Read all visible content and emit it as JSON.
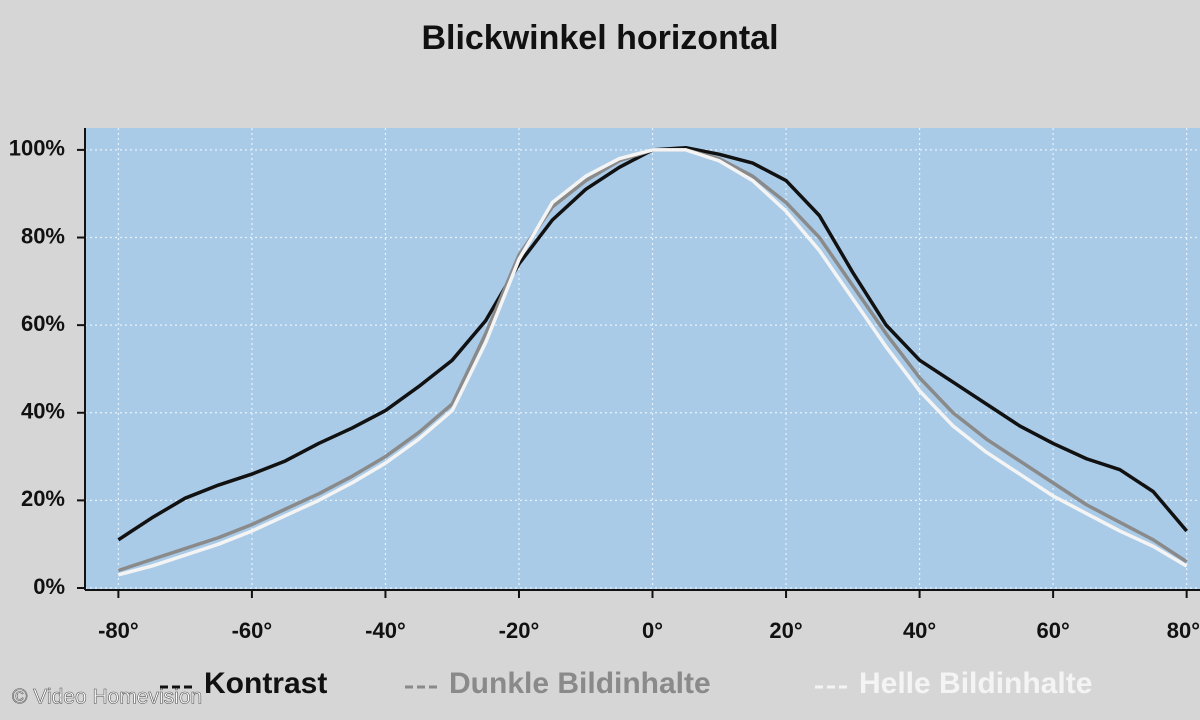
{
  "chart_data": {
    "type": "line",
    "title": "Blickwinkel horizontal",
    "credit": "© Video Homevision",
    "x": [
      -80,
      -75,
      -70,
      -65,
      -60,
      -55,
      -50,
      -45,
      -40,
      -35,
      -30,
      -25,
      -20,
      -15,
      -10,
      -5,
      0,
      5,
      10,
      15,
      20,
      25,
      30,
      35,
      40,
      45,
      50,
      55,
      60,
      65,
      70,
      75,
      80
    ],
    "series": [
      {
        "name": "Kontrast",
        "color": "#111111",
        "values": [
          11,
          16,
          20.5,
          23.5,
          26,
          29,
          33,
          36.5,
          40.5,
          46,
          52,
          61,
          74,
          84,
          91,
          96,
          100,
          100.5,
          99,
          97,
          93,
          85,
          72,
          60,
          52,
          47,
          42,
          37,
          33,
          29.5,
          27,
          22,
          13
        ]
      },
      {
        "name": "Dunkle Bildinhalte",
        "color": "#8a8a8a",
        "values": [
          4,
          6.5,
          9,
          11.5,
          14.5,
          18,
          21.5,
          25.5,
          30,
          35.5,
          42,
          58,
          76,
          87,
          93,
          97.5,
          100,
          100,
          98,
          94,
          88,
          80,
          69,
          58,
          48,
          40,
          34,
          29,
          24,
          19,
          15,
          11,
          6
        ]
      },
      {
        "name": "Helle Bildinhalte",
        "color": "#f4f4f4",
        "values": [
          3,
          5,
          7.5,
          10,
          13,
          16.5,
          20,
          24,
          28.5,
          34,
          40.5,
          56,
          75,
          88,
          94,
          98,
          100,
          100,
          97.5,
          93,
          86,
          77,
          66,
          55,
          45,
          37,
          31,
          26,
          21,
          17,
          13,
          9.5,
          5
        ]
      }
    ],
    "xlim": [
      -85,
      82
    ],
    "ylim": [
      0,
      105
    ],
    "xticks": [
      {
        "value": -80,
        "label": "-80°"
      },
      {
        "value": -60,
        "label": "-60°"
      },
      {
        "value": -40,
        "label": "-40°"
      },
      {
        "value": -20,
        "label": "-20°"
      },
      {
        "value": 0,
        "label": "0°"
      },
      {
        "value": 20,
        "label": "20°"
      },
      {
        "value": 40,
        "label": "40°"
      },
      {
        "value": 60,
        "label": "60°"
      },
      {
        "value": 80,
        "label": "80°"
      }
    ],
    "yticks": [
      {
        "value": 0,
        "label": "0%"
      },
      {
        "value": 20,
        "label": "20%"
      },
      {
        "value": 40,
        "label": "40%"
      },
      {
        "value": 60,
        "label": "60%"
      },
      {
        "value": 80,
        "label": "80%"
      },
      {
        "value": 100,
        "label": "100%"
      }
    ],
    "grid": true,
    "legend": "bottom"
  }
}
